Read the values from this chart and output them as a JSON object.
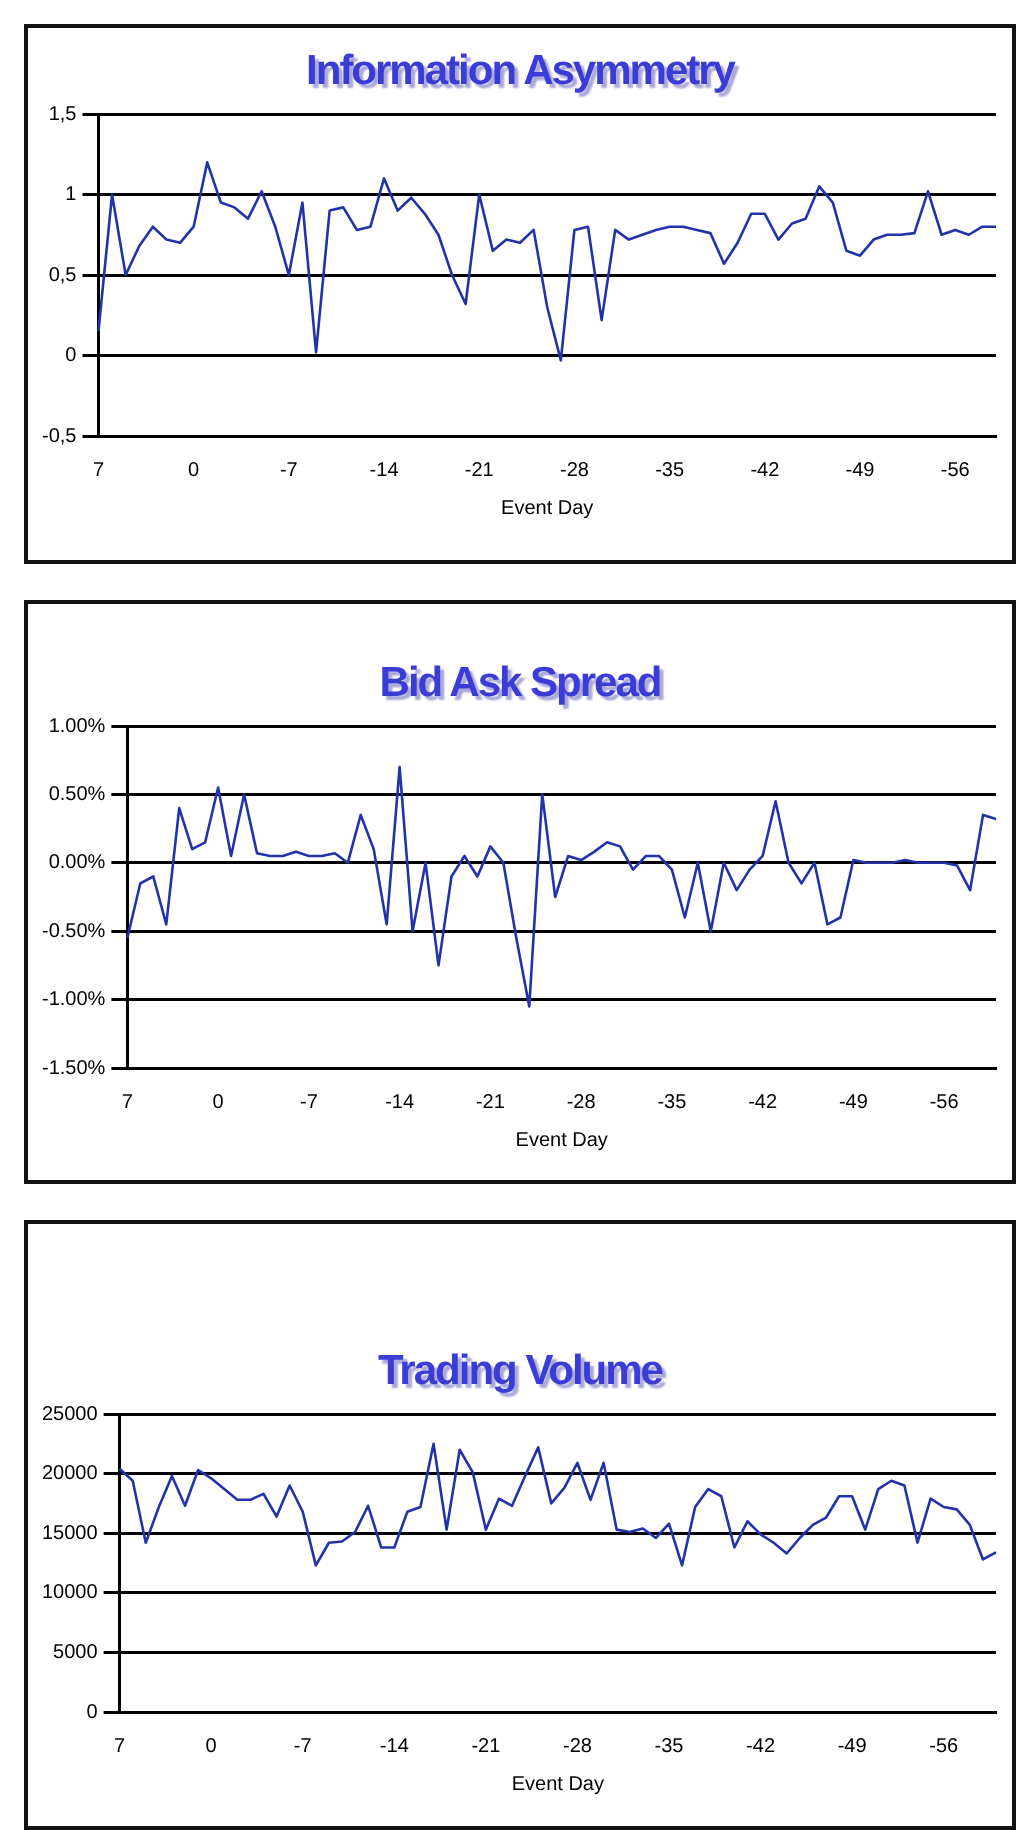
{
  "chart_data": [
    {
      "type": "line",
      "title": "Information Asymmetry",
      "xlabel": "Event Day",
      "marker": "none",
      "grid": "y",
      "categories": [
        "7",
        null,
        null,
        null,
        null,
        null,
        null,
        "0",
        null,
        null,
        null,
        null,
        null,
        null,
        "-7",
        null,
        null,
        null,
        null,
        null,
        null,
        "-14",
        null,
        null,
        null,
        null,
        null,
        null,
        "-21",
        null,
        null,
        null,
        null,
        null,
        null,
        "-28",
        null,
        null,
        null,
        null,
        null,
        null,
        "-35",
        null,
        null,
        null,
        null,
        null,
        null,
        "-42",
        null,
        null,
        null,
        null,
        null,
        null,
        "-49",
        null,
        null,
        null,
        null,
        null,
        null,
        "-56",
        null,
        null,
        null
      ],
      "series": [
        {
          "color": "#2233aa",
          "values": [
            0.15,
            1.0,
            0.5,
            0.68,
            0.8,
            0.72,
            0.7,
            0.8,
            1.2,
            0.95,
            0.92,
            0.85,
            1.02,
            0.8,
            0.5,
            0.95,
            0.02,
            0.9,
            0.92,
            0.78,
            0.8,
            1.1,
            0.9,
            0.98,
            0.88,
            0.75,
            0.5,
            0.32,
            1.0,
            0.65,
            0.72,
            0.7,
            0.78,
            0.3,
            -0.03,
            0.78,
            0.8,
            0.22,
            0.78,
            0.72,
            0.75,
            0.78,
            0.8,
            0.8,
            0.78,
            0.76,
            0.57,
            0.7,
            0.88,
            0.88,
            0.72,
            0.82,
            0.85,
            1.05,
            0.95,
            0.65,
            0.62,
            0.72,
            0.75,
            0.75,
            0.76,
            1.02,
            0.75,
            0.78,
            0.75,
            0.8,
            0.8
          ]
        }
      ],
      "ylim": [
        -0.5,
        1.5
      ],
      "yticks": [
        {
          "value": -0.5,
          "label": "-0,5"
        },
        0,
        {
          "value": 0.5,
          "label": "0,5"
        },
        1,
        {
          "value": 1.5,
          "label": "1,5"
        }
      ]
    },
    {
      "type": "line",
      "title": "Bid Ask Spread",
      "xlabel": "Event Day",
      "marker": "none",
      "grid": "y",
      "categories": [
        "7",
        null,
        null,
        null,
        null,
        null,
        null,
        "0",
        null,
        null,
        null,
        null,
        null,
        null,
        "-7",
        null,
        null,
        null,
        null,
        null,
        null,
        "-14",
        null,
        null,
        null,
        null,
        null,
        null,
        "-21",
        null,
        null,
        null,
        null,
        null,
        null,
        "-28",
        null,
        null,
        null,
        null,
        null,
        null,
        "-35",
        null,
        null,
        null,
        null,
        null,
        null,
        "-42",
        null,
        null,
        null,
        null,
        null,
        null,
        "-49",
        null,
        null,
        null,
        null,
        null,
        null,
        "-56",
        null,
        null,
        null,
        null
      ],
      "series": [
        {
          "color": "#2233aa",
          "values": [
            -0.55,
            -0.15,
            -0.1,
            -0.45,
            0.4,
            0.1,
            0.15,
            0.55,
            0.05,
            0.5,
            0.07,
            0.05,
            0.05,
            0.08,
            0.05,
            0.05,
            0.07,
            0.0,
            0.35,
            0.1,
            -0.45,
            0.7,
            -0.5,
            0.0,
            -0.75,
            -0.1,
            0.05,
            -0.1,
            0.12,
            0.0,
            -0.55,
            -1.05,
            0.5,
            -0.25,
            0.05,
            0.02,
            0.08,
            0.15,
            0.12,
            -0.05,
            0.05,
            0.05,
            -0.05,
            -0.4,
            0.0,
            -0.5,
            0.0,
            -0.2,
            -0.05,
            0.05,
            0.45,
            0.0,
            -0.15,
            0.0,
            -0.45,
            -0.4,
            0.02,
            0.0,
            0.0,
            0.0,
            0.02,
            0.0,
            0.0,
            0.0,
            -0.02,
            -0.2,
            0.35,
            0.32
          ]
        }
      ],
      "ylim": [
        -1.5,
        1.0
      ],
      "yticks": [
        {
          "value": -1.5,
          "label": "-1.50%"
        },
        {
          "value": -1.0,
          "label": "-1.00%"
        },
        {
          "value": -0.5,
          "label": "-0.50%"
        },
        {
          "value": 0,
          "label": "0.00%"
        },
        {
          "value": 0.5,
          "label": "0.50%"
        },
        {
          "value": 1.0,
          "label": "1.00%"
        }
      ]
    },
    {
      "type": "line",
      "title": "Trading Volume",
      "xlabel": "Event Day",
      "marker": "none",
      "grid": "y",
      "categories": [
        "7",
        null,
        null,
        null,
        null,
        null,
        null,
        "0",
        null,
        null,
        null,
        null,
        null,
        null,
        "-7",
        null,
        null,
        null,
        null,
        null,
        null,
        "-14",
        null,
        null,
        null,
        null,
        null,
        null,
        "-21",
        null,
        null,
        null,
        null,
        null,
        null,
        "-28",
        null,
        null,
        null,
        null,
        null,
        null,
        "-35",
        null,
        null,
        null,
        null,
        null,
        null,
        "-42",
        null,
        null,
        null,
        null,
        null,
        null,
        "-49",
        null,
        null,
        null,
        null,
        null,
        null,
        "-56",
        null,
        null,
        null,
        null
      ],
      "series": [
        {
          "color": "#2233aa",
          "values": [
            20400,
            19400,
            14200,
            17200,
            19800,
            17300,
            20300,
            19600,
            18700,
            17800,
            17800,
            18300,
            16400,
            19000,
            16800,
            12300,
            14200,
            14300,
            15100,
            17300,
            13800,
            13800,
            16800,
            17200,
            22500,
            15300,
            22000,
            20100,
            15300,
            17900,
            17300,
            19800,
            22200,
            17500,
            18800,
            20900,
            17800,
            20900,
            15300,
            15100,
            15400,
            14600,
            15800,
            12300,
            17200,
            18700,
            18100,
            13800,
            16000,
            14900,
            14200,
            13300,
            14600,
            15700,
            16300,
            18100,
            18100,
            15300,
            18700,
            19400,
            19000,
            14200,
            17900,
            17200,
            17000,
            15700,
            12800,
            13400
          ]
        }
      ],
      "ylim": [
        0,
        25000
      ],
      "yticks": [
        0,
        5000,
        10000,
        15000,
        20000,
        25000
      ]
    }
  ]
}
